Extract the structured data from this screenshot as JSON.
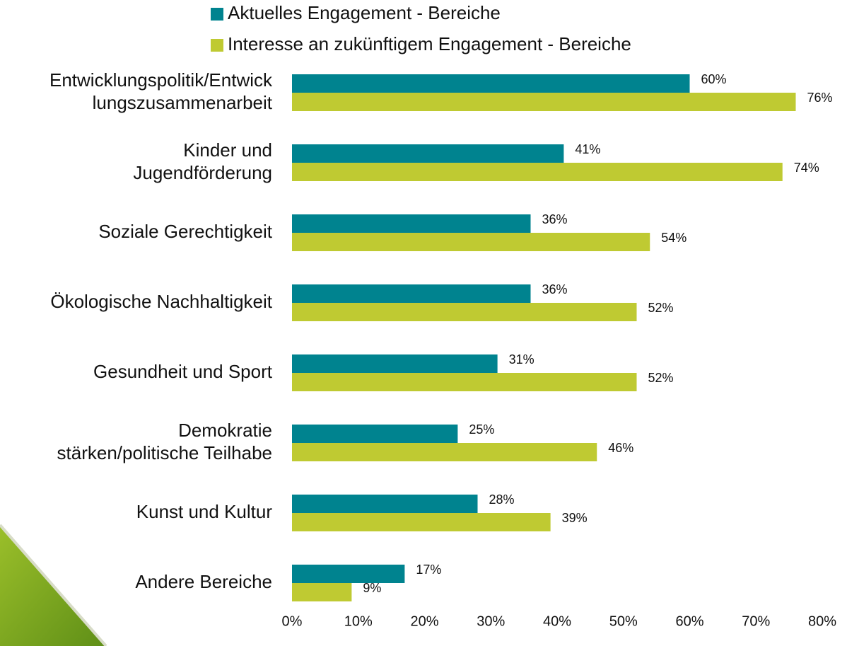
{
  "chart_data": {
    "type": "barh",
    "categories": [
      "Entwicklungspolitik/Entwick\nlungszusammenarbeit",
      "Kinder und\nJugendförderung",
      "Soziale Gerechtigkeit",
      "Ökologische Nachhaltigkeit",
      "Gesundheit und Sport",
      "Demokratie\nstärken/politische Teilhabe",
      "Kunst und Kultur",
      "Andere Bereiche"
    ],
    "series": [
      {
        "name": "Aktuelles Engagement - Bereiche",
        "color": "#00838f",
        "values": [
          60,
          41,
          36,
          36,
          31,
          25,
          28,
          17
        ],
        "value_labels": [
          "60%",
          "41%",
          "36%",
          "36%",
          "31%",
          "25%",
          "28%",
          "17%"
        ]
      },
      {
        "name": "Interesse an zukünftigem Engagement - Bereiche",
        "color": "#bfca32",
        "values": [
          76,
          74,
          54,
          52,
          52,
          46,
          39,
          9
        ],
        "value_labels": [
          "76%",
          "74%",
          "54%",
          "52%",
          "52%",
          "46%",
          "39%",
          "9%"
        ]
      }
    ],
    "xlim": [
      0,
      80
    ],
    "xticks": [
      {
        "value": 0,
        "label": "0%"
      },
      {
        "value": 10,
        "label": "10%"
      },
      {
        "value": 20,
        "label": "20%"
      },
      {
        "value": 30,
        "label": "30%"
      },
      {
        "value": 40,
        "label": "40%"
      },
      {
        "value": 50,
        "label": "50%"
      },
      {
        "value": 60,
        "label": "60%"
      },
      {
        "value": 70,
        "label": "70%"
      },
      {
        "value": 80,
        "label": "80%"
      }
    ],
    "legend": "top"
  }
}
